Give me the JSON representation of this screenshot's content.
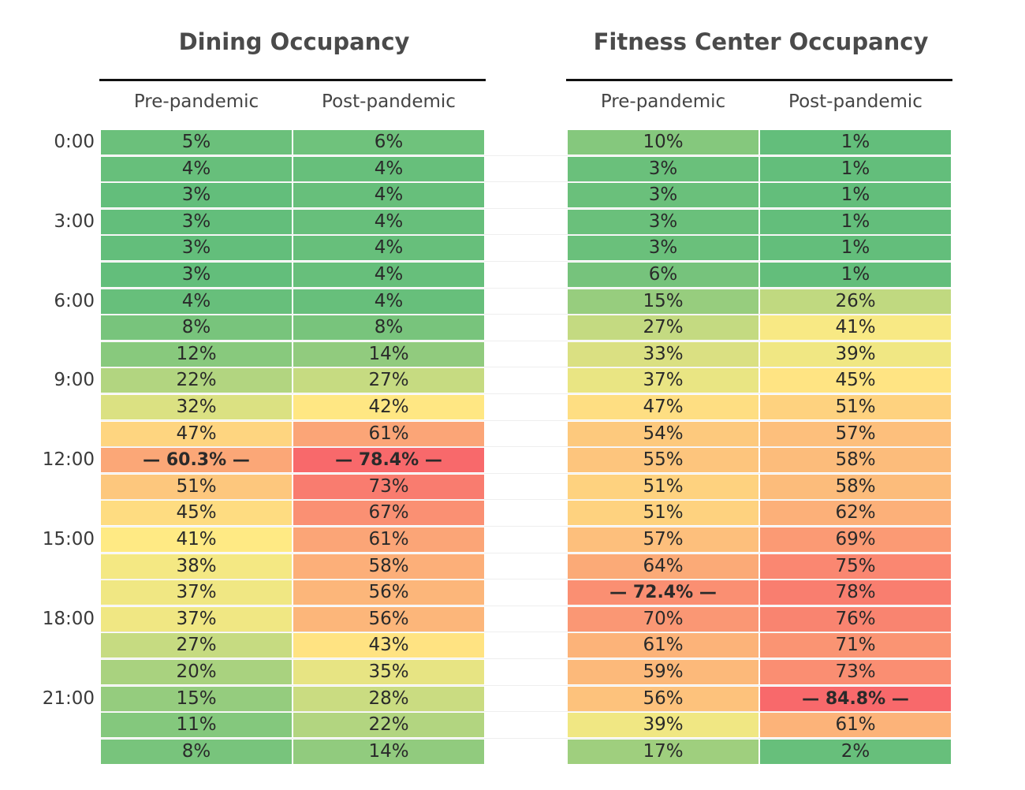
{
  "chart_data": {
    "type": "heatmap",
    "hour_labels": [
      "0:00",
      "3:00",
      "6:00",
      "9:00",
      "12:00",
      "15:00",
      "18:00",
      "21:00"
    ],
    "label_every": 3,
    "row_count": 24,
    "color_scale": {
      "low": "#63be7b",
      "mid": "#ffeb84",
      "high": "#f8696b"
    },
    "panels": [
      {
        "title": "Dining Occupancy",
        "columns": [
          {
            "name": "Pre-pandemic",
            "values": [
              5,
              4,
              3,
              3,
              3,
              3,
              4,
              8,
              12,
              22,
              32,
              47,
              60.3,
              51,
              45,
              41,
              38,
              37,
              37,
              27,
              20,
              15,
              11,
              8
            ],
            "peak_index": 12,
            "peak_label": "— 60.3% —"
          },
          {
            "name": "Post-pandemic",
            "values": [
              6,
              4,
              4,
              4,
              4,
              4,
              4,
              8,
              14,
              27,
              42,
              61,
              78.4,
              73,
              67,
              61,
              58,
              56,
              56,
              43,
              35,
              28,
              22,
              14
            ],
            "peak_index": 12,
            "peak_label": "— 78.4% —"
          }
        ]
      },
      {
        "title": "Fitness Center Occupancy",
        "columns": [
          {
            "name": "Pre-pandemic",
            "values": [
              10,
              3,
              3,
              3,
              3,
              6,
              15,
              27,
              33,
              37,
              47,
              54,
              55,
              51,
              51,
              57,
              64,
              72.4,
              70,
              61,
              59,
              56,
              39,
              17
            ],
            "peak_index": 17,
            "peak_label": "— 72.4% —"
          },
          {
            "name": "Post-pandemic",
            "values": [
              1,
              1,
              1,
              1,
              1,
              1,
              26,
              41,
              39,
              45,
              51,
              57,
              58,
              58,
              62,
              69,
              75,
              78,
              76,
              71,
              73,
              84.8,
              61,
              2
            ],
            "peak_index": 21,
            "peak_label": "— 84.8% —"
          }
        ]
      }
    ]
  }
}
